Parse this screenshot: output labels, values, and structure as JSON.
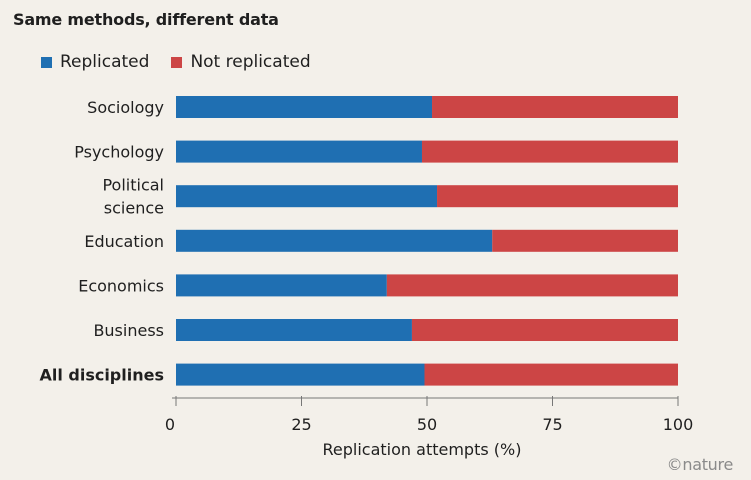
{
  "colors": {
    "replicated": "#1f6fb2",
    "not_replicated": "#cc4545",
    "background": "#f3f0ea"
  },
  "credit": "©nature",
  "chart_data": {
    "type": "bar",
    "orientation": "horizontal",
    "stacked": true,
    "title": "Same methods, different data",
    "xlabel": "Replication attempts (%)",
    "ylabel": "",
    "xlim": [
      0,
      100
    ],
    "xticks": [
      0,
      25,
      50,
      75,
      100
    ],
    "legend_position": "top-left",
    "grid": false,
    "categories": [
      "Sociology",
      "Psychology",
      [
        "Political",
        "science"
      ],
      "Education",
      "Economics",
      "Business",
      "All disciplines"
    ],
    "series": [
      {
        "name": "Replicated",
        "values": [
          51,
          49,
          52,
          63,
          42,
          47,
          49.5
        ]
      },
      {
        "name": "Not replicated",
        "values": [
          49,
          51,
          48,
          37,
          58,
          53,
          50.5
        ]
      }
    ]
  }
}
